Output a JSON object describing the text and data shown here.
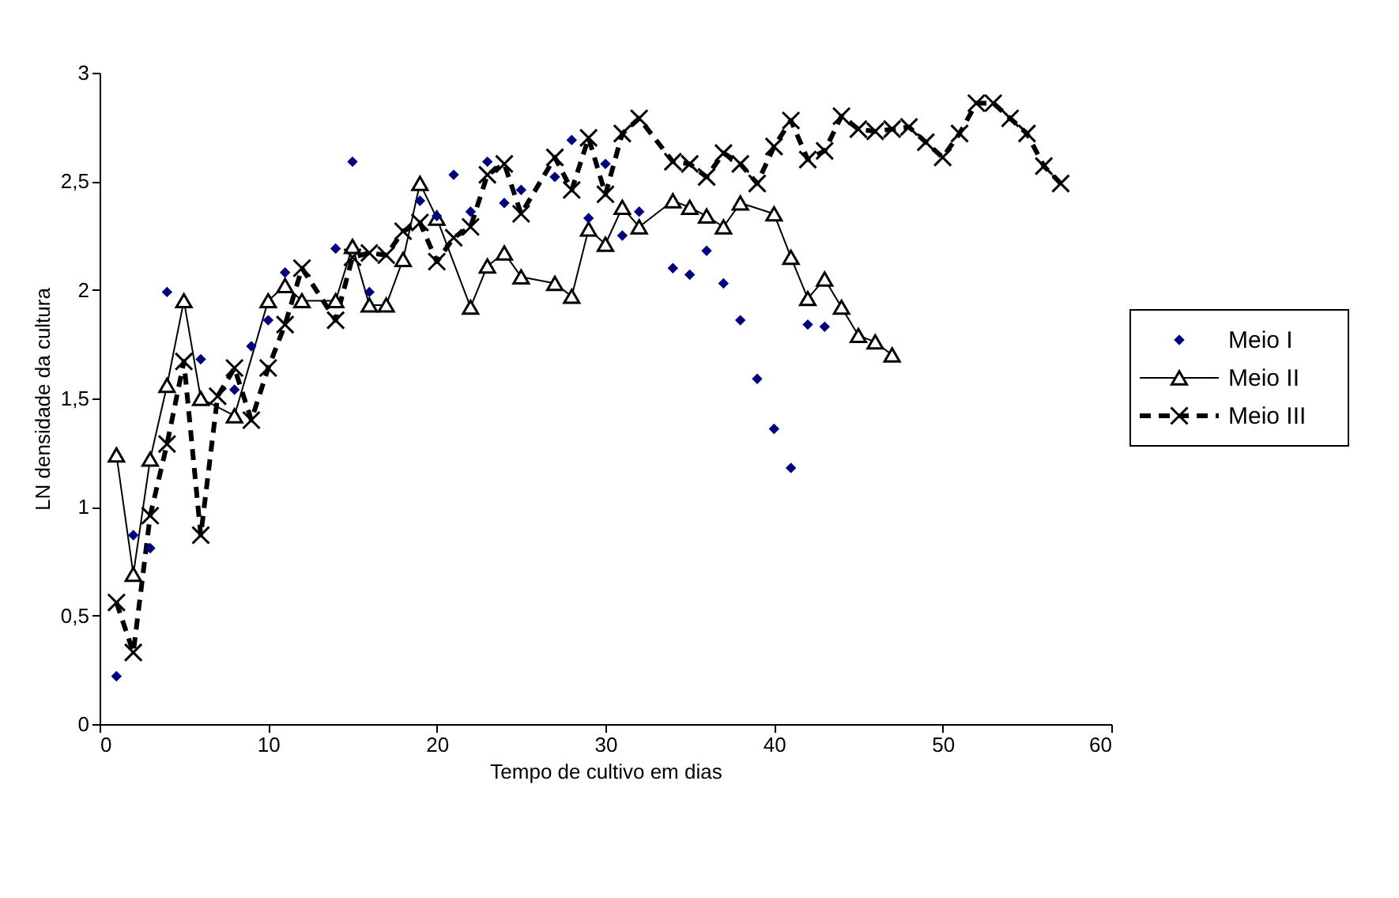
{
  "chart_data": {
    "type": "scatter",
    "xlabel": "Tempo de cultivo em dias",
    "ylabel": "LN densidade da cultura",
    "xlim": [
      0,
      60
    ],
    "xticks": [
      0,
      10,
      20,
      30,
      40,
      50,
      60
    ],
    "ylim": [
      0,
      3
    ],
    "yticks": [
      0,
      {
        "value": 0.5,
        "label": "0,5"
      },
      1,
      {
        "value": 1.5,
        "label": "1,5"
      },
      2,
      {
        "value": 2.5,
        "label": "2,5"
      },
      3
    ],
    "grid": false,
    "legend": "right",
    "series": [
      {
        "name": "Meio I",
        "marker": "diamond",
        "color": "#000080",
        "x": [
          1,
          2,
          3,
          4,
          6,
          8,
          9,
          10,
          11,
          14,
          15,
          16,
          19,
          20,
          21,
          22,
          23,
          24,
          25,
          27,
          28,
          29,
          30,
          31,
          32,
          34,
          35,
          36,
          37,
          38,
          39,
          40,
          41,
          42,
          43
        ],
        "values": [
          0.22,
          0.87,
          0.81,
          1.99,
          1.68,
          1.54,
          1.74,
          1.86,
          2.08,
          2.19,
          2.59,
          1.99,
          2.41,
          2.34,
          2.53,
          2.36,
          2.59,
          2.4,
          2.46,
          2.52,
          2.69,
          2.33,
          2.58,
          2.25,
          2.36,
          2.1,
          2.07,
          2.18,
          2.03,
          1.86,
          1.59,
          1.36,
          1.18,
          1.84,
          1.83
        ]
      },
      {
        "name": "Meio II",
        "type": "line",
        "marker": "triangle",
        "line_style": "solid",
        "color": "#000000",
        "x": [
          1,
          2,
          3,
          4,
          5,
          6,
          8,
          10,
          11,
          12,
          14,
          15,
          16,
          17,
          18,
          19,
          20,
          22,
          23,
          24,
          25,
          27,
          28,
          29,
          30,
          31,
          32,
          34,
          35,
          36,
          37,
          38,
          40,
          41,
          42,
          43,
          44,
          45,
          46,
          47
        ],
        "values": [
          1.24,
          0.69,
          1.22,
          1.56,
          1.95,
          1.5,
          1.42,
          1.95,
          2.02,
          1.95,
          1.95,
          2.2,
          1.93,
          1.93,
          2.14,
          2.49,
          2.33,
          1.92,
          2.11,
          2.17,
          2.06,
          2.03,
          1.97,
          2.28,
          2.21,
          2.38,
          2.29,
          2.41,
          2.38,
          2.34,
          2.29,
          2.4,
          2.35,
          2.15,
          1.96,
          2.05,
          1.92,
          1.79,
          1.76,
          1.7
        ]
      },
      {
        "name": "Meio III",
        "type": "line",
        "marker": "cross",
        "line_style": "dashed",
        "color": "#000000",
        "x": [
          1,
          2,
          3,
          4,
          5,
          6,
          7,
          8,
          9,
          10,
          11,
          12,
          14,
          15,
          16,
          17,
          18,
          19,
          20,
          21,
          22,
          23,
          24,
          25,
          27,
          28,
          29,
          30,
          31,
          32,
          34,
          35,
          36,
          37,
          38,
          39,
          40,
          41,
          42,
          43,
          44,
          45,
          46,
          47,
          48,
          49,
          50,
          51,
          52,
          53,
          54,
          55,
          56,
          57
        ],
        "values": [
          0.56,
          0.33,
          0.96,
          1.29,
          1.67,
          0.87,
          1.51,
          1.64,
          1.4,
          1.64,
          1.84,
          2.1,
          1.86,
          2.15,
          2.17,
          2.16,
          2.27,
          2.31,
          2.13,
          2.24,
          2.29,
          2.53,
          2.58,
          2.35,
          2.61,
          2.46,
          2.7,
          2.44,
          2.72,
          2.79,
          2.59,
          2.58,
          2.52,
          2.63,
          2.58,
          2.49,
          2.66,
          2.78,
          2.6,
          2.64,
          2.8,
          2.74,
          2.73,
          2.74,
          2.75,
          2.68,
          2.61,
          2.72,
          2.86,
          2.86,
          2.79,
          2.72,
          2.57,
          2.49
        ]
      }
    ]
  }
}
